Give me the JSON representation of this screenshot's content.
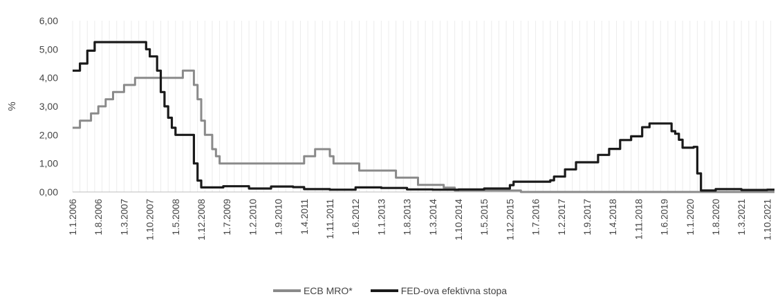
{
  "chart_data": {
    "type": "line",
    "xlabel": "",
    "ylabel": "%",
    "ylim": [
      0,
      6
    ],
    "yticks": [
      "0,00",
      "1,00",
      "2,00",
      "3,00",
      "4,00",
      "5,00",
      "6,00"
    ],
    "xticks": [
      "1.1.2006",
      "1.8.2006",
      "1.3.2007",
      "1.10.2007",
      "1.5.2008",
      "1.12.2008",
      "1.7.2009",
      "1.2.2010",
      "1.9.2010",
      "1.4.2011",
      "1.11.2011",
      "1.6.2012",
      "1.1.2013",
      "1.8.2013",
      "1.3.2014",
      "1.10.2014",
      "1.5.2015",
      "1.12.2015",
      "1.7.2016",
      "1.2.2017",
      "1.9.2017",
      "1.4.2018",
      "1.11.2018",
      "1.6.2019",
      "1.1.2020",
      "1.8.2020",
      "1.3.2021",
      "1.10.2021"
    ],
    "grid": "vertical",
    "legend_position": "bottom",
    "series": [
      {
        "name": "ECB MRO*",
        "color": "#8a8a8a",
        "points": [
          [
            "2006-01",
            2.25
          ],
          [
            "2006-03",
            2.5
          ],
          [
            "2006-06",
            2.75
          ],
          [
            "2006-08",
            3.0
          ],
          [
            "2006-10",
            3.25
          ],
          [
            "2006-12",
            3.5
          ],
          [
            "2007-03",
            3.75
          ],
          [
            "2007-06",
            4.0
          ],
          [
            "2008-07",
            4.25
          ],
          [
            "2008-10",
            3.75
          ],
          [
            "2008-11",
            3.25
          ],
          [
            "2008-12",
            2.5
          ],
          [
            "2009-01",
            2.0
          ],
          [
            "2009-03",
            1.5
          ],
          [
            "2009-04",
            1.25
          ],
          [
            "2009-05",
            1.0
          ],
          [
            "2011-04",
            1.25
          ],
          [
            "2011-07",
            1.5
          ],
          [
            "2011-11",
            1.25
          ],
          [
            "2011-12",
            1.0
          ],
          [
            "2012-07",
            0.75
          ],
          [
            "2013-05",
            0.5
          ],
          [
            "2013-11",
            0.25
          ],
          [
            "2014-06",
            0.15
          ],
          [
            "2014-09",
            0.05
          ],
          [
            "2016-03",
            0.0
          ],
          [
            "2021-12",
            0.0
          ]
        ]
      },
      {
        "name": "FED-ova efektivna stopa",
        "color": "#1a1a1a",
        "points": [
          [
            "2006-01",
            4.25
          ],
          [
            "2006-03",
            4.5
          ],
          [
            "2006-05",
            4.95
          ],
          [
            "2006-07",
            5.25
          ],
          [
            "2007-08",
            5.25
          ],
          [
            "2007-09",
            5.0
          ],
          [
            "2007-10",
            4.75
          ],
          [
            "2007-12",
            4.25
          ],
          [
            "2008-01",
            3.5
          ],
          [
            "2008-02",
            3.0
          ],
          [
            "2008-03",
            2.6
          ],
          [
            "2008-04",
            2.25
          ],
          [
            "2008-05",
            2.0
          ],
          [
            "2008-09",
            2.0
          ],
          [
            "2008-10",
            1.0
          ],
          [
            "2008-11",
            0.4
          ],
          [
            "2008-12",
            0.16
          ],
          [
            "2009-06",
            0.2
          ],
          [
            "2010-01",
            0.12
          ],
          [
            "2010-07",
            0.19
          ],
          [
            "2011-01",
            0.17
          ],
          [
            "2011-04",
            0.1
          ],
          [
            "2011-11",
            0.08
          ],
          [
            "2012-06",
            0.16
          ],
          [
            "2013-01",
            0.14
          ],
          [
            "2013-08",
            0.09
          ],
          [
            "2014-03",
            0.08
          ],
          [
            "2014-10",
            0.09
          ],
          [
            "2015-05",
            0.12
          ],
          [
            "2015-11",
            0.12
          ],
          [
            "2015-12",
            0.24
          ],
          [
            "2016-01",
            0.36
          ],
          [
            "2016-11",
            0.41
          ],
          [
            "2016-12",
            0.54
          ],
          [
            "2017-03",
            0.79
          ],
          [
            "2017-06",
            1.04
          ],
          [
            "2017-12",
            1.3
          ],
          [
            "2018-03",
            1.51
          ],
          [
            "2018-06",
            1.82
          ],
          [
            "2018-09",
            1.95
          ],
          [
            "2018-12",
            2.27
          ],
          [
            "2019-02",
            2.4
          ],
          [
            "2019-07",
            2.4
          ],
          [
            "2019-08",
            2.13
          ],
          [
            "2019-09",
            2.04
          ],
          [
            "2019-10",
            1.83
          ],
          [
            "2019-11",
            1.55
          ],
          [
            "2020-02",
            1.58
          ],
          [
            "2020-03",
            0.65
          ],
          [
            "2020-04",
            0.05
          ],
          [
            "2020-08",
            0.1
          ],
          [
            "2021-03",
            0.07
          ],
          [
            "2021-10",
            0.08
          ],
          [
            "2021-12",
            0.08
          ]
        ]
      }
    ]
  }
}
